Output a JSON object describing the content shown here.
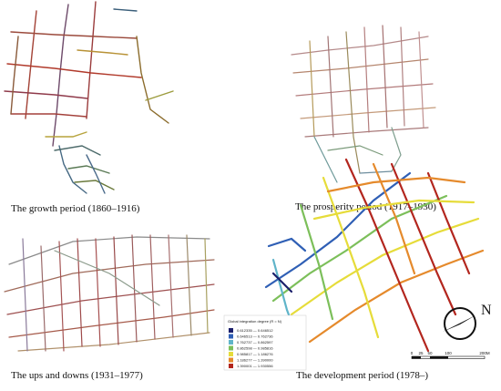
{
  "captions": [
    "The growth period (1860–1916)",
    "The prosperity period (1917–1930)",
    "The ups and downs (1931–1977)",
    "The development period (1978–)"
  ],
  "legend": {
    "title": "Global integration degree (R = N)",
    "items": [
      {
        "label": "0.612335 — 0.646512",
        "color": "#1b1f6b"
      },
      {
        "label": "0.646513 — 0.762736",
        "color": "#2f5fb5"
      },
      {
        "label": "0.762737 — 0.862597",
        "color": "#5fb4c9"
      },
      {
        "label": "0.862598 — 0.985816",
        "color": "#7cbf5a"
      },
      {
        "label": "0.985817 — 1.186276",
        "color": "#e6dc3a"
      },
      {
        "label": "1.186277 — 1.390000",
        "color": "#e58a2c"
      },
      {
        "label": "1.390001 — 1.930556",
        "color": "#b3261e"
      }
    ]
  },
  "north": "N",
  "scale_labels": [
    "0",
    "25",
    "50",
    "100",
    "200M"
  ]
}
